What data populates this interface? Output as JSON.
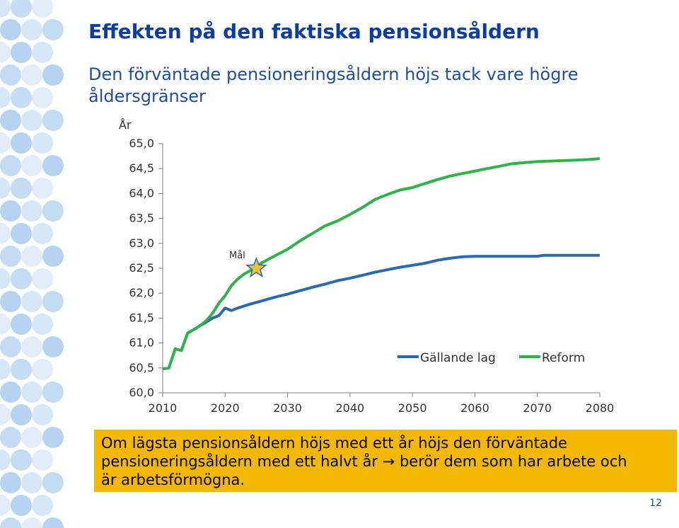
{
  "slide": {
    "title": "Effekten på den faktiska pensionsåldern",
    "subtitle": "Den förväntade pensioneringsåldern höjs tack vare högre åldersgränser",
    "callout": {
      "line1": "Om lägsta pensionsåldern höjs med ett år höjs den förväntade",
      "line2_a": "pensioneringsåldern med ett halvt år",
      "arrow": "→",
      "line2_b": "berör dem som har arbete och",
      "line3": "är arbetsförmögna."
    },
    "page_number": "12",
    "colors": {
      "title": "#0b3ea0",
      "callout_bg": "#f5b800",
      "gallande": "#2a6ab3",
      "reform": "#2fb24a",
      "star": "#f2c230"
    }
  },
  "chart_data": {
    "type": "line",
    "ylabel": "År",
    "ylim": [
      60.0,
      65.0
    ],
    "yticks": [
      "60,0",
      "60,5",
      "61,0",
      "61,5",
      "62,0",
      "62,5",
      "63,0",
      "63,5",
      "64,0",
      "64,5",
      "65,0"
    ],
    "xlim": [
      2010,
      2080
    ],
    "xticks": [
      "2010",
      "2020",
      "2030",
      "2040",
      "2050",
      "2060",
      "2070",
      "2080"
    ],
    "legend_position": "right",
    "annotation": {
      "label": "Mål",
      "x": 2025,
      "y": 62.5,
      "marker": "star-icon"
    },
    "series": [
      {
        "name": "Gällande lag",
        "x": [
          2010,
          2011,
          2012,
          2013,
          2014,
          2015,
          2016,
          2017,
          2018,
          2019,
          2020,
          2021,
          2022,
          2024,
          2026,
          2028,
          2030,
          2032,
          2034,
          2036,
          2038,
          2040,
          2042,
          2044,
          2046,
          2048,
          2050,
          2052,
          2054,
          2056,
          2058,
          2060,
          2062,
          2064,
          2066,
          2068,
          2070,
          2071,
          2072,
          2080
        ],
        "values": [
          60.48,
          60.5,
          60.88,
          60.85,
          61.2,
          61.27,
          61.35,
          61.42,
          61.5,
          61.55,
          61.7,
          61.65,
          61.7,
          61.78,
          61.85,
          61.92,
          61.98,
          62.05,
          62.12,
          62.18,
          62.25,
          62.3,
          62.36,
          62.42,
          62.47,
          62.52,
          62.56,
          62.6,
          62.66,
          62.7,
          62.73,
          62.74,
          62.74,
          62.74,
          62.74,
          62.74,
          62.74,
          62.76,
          62.76,
          62.76
        ]
      },
      {
        "name": "Reform",
        "x": [
          2010,
          2011,
          2012,
          2013,
          2014,
          2015,
          2016,
          2017,
          2018,
          2019,
          2020,
          2021,
          2022,
          2023,
          2024,
          2025,
          2026,
          2028,
          2030,
          2032,
          2034,
          2036,
          2038,
          2040,
          2042,
          2044,
          2046,
          2048,
          2050,
          2052,
          2054,
          2056,
          2058,
          2060,
          2062,
          2064,
          2066,
          2068,
          2070,
          2072,
          2074,
          2076,
          2078,
          2080
        ],
        "values": [
          60.48,
          60.5,
          60.88,
          60.85,
          61.2,
          61.27,
          61.35,
          61.45,
          61.6,
          61.8,
          61.95,
          62.15,
          62.28,
          62.38,
          62.45,
          62.52,
          62.62,
          62.75,
          62.88,
          63.05,
          63.2,
          63.35,
          63.45,
          63.58,
          63.72,
          63.88,
          63.98,
          64.07,
          64.12,
          64.2,
          64.28,
          64.35,
          64.4,
          64.45,
          64.5,
          64.55,
          64.6,
          64.62,
          64.64,
          64.65,
          64.66,
          64.67,
          64.68,
          64.7
        ]
      }
    ]
  }
}
